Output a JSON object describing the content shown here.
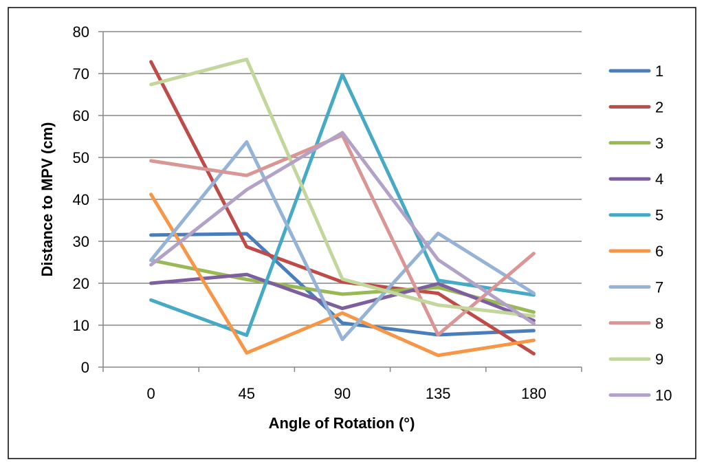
{
  "chart_data": {
    "type": "line",
    "title": "",
    "xlabel": "Angle of  Rotation (°)",
    "ylabel": "Distance to MPV (cm)",
    "categories": [
      "0",
      "45",
      "90",
      "135",
      "180"
    ],
    "ylim": [
      0,
      80
    ],
    "yticks": [
      0,
      10,
      20,
      30,
      40,
      50,
      60,
      70,
      80
    ],
    "grid": true,
    "legend_position": "right",
    "series": [
      {
        "name": "1",
        "color": "#4a7ebb",
        "values": [
          31.5,
          31.8,
          10.5,
          7.7,
          8.7
        ]
      },
      {
        "name": "2",
        "color": "#be4b48",
        "values": [
          72.8,
          28.7,
          20.3,
          17.6,
          3.2
        ]
      },
      {
        "name": "3",
        "color": "#98b954",
        "values": [
          25.5,
          20.9,
          17.4,
          19.0,
          13.1
        ]
      },
      {
        "name": "4",
        "color": "#7d5fa0",
        "values": [
          20.0,
          22.1,
          14.0,
          19.9,
          11.1
        ]
      },
      {
        "name": "5",
        "color": "#46aac5",
        "values": [
          16.0,
          7.6,
          69.8,
          20.7,
          17.2
        ]
      },
      {
        "name": "6",
        "color": "#f79646",
        "values": [
          41.2,
          3.4,
          12.9,
          2.8,
          6.4
        ]
      },
      {
        "name": "7",
        "color": "#95b3d7",
        "values": [
          25.5,
          53.7,
          6.6,
          31.9,
          17.6
        ]
      },
      {
        "name": "8",
        "color": "#d99694",
        "values": [
          49.2,
          45.7,
          55.3,
          7.7,
          27.1
        ]
      },
      {
        "name": "9",
        "color": "#c3d69b",
        "values": [
          67.4,
          73.4,
          21.0,
          14.8,
          12.2
        ]
      },
      {
        "name": "10",
        "color": "#b3a2c7",
        "values": [
          24.4,
          42.3,
          55.9,
          25.6,
          10.4
        ]
      }
    ]
  }
}
